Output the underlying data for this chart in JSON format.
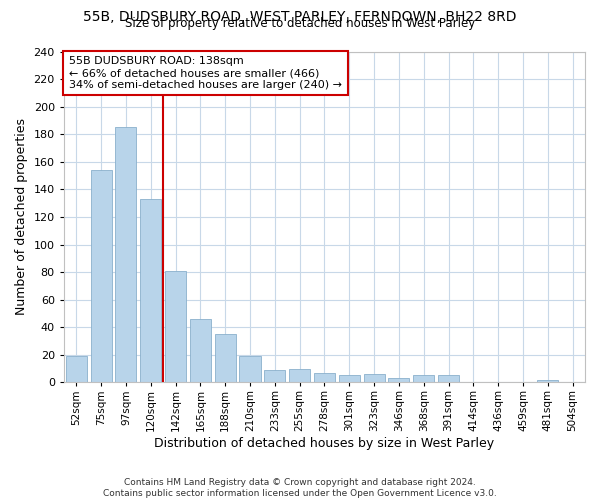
{
  "title1": "55B, DUDSBURY ROAD, WEST PARLEY, FERNDOWN, BH22 8RD",
  "title2": "Size of property relative to detached houses in West Parley",
  "xlabel": "Distribution of detached houses by size in West Parley",
  "ylabel": "Number of detached properties",
  "categories": [
    "52sqm",
    "75sqm",
    "97sqm",
    "120sqm",
    "142sqm",
    "165sqm",
    "188sqm",
    "210sqm",
    "233sqm",
    "255sqm",
    "278sqm",
    "301sqm",
    "323sqm",
    "346sqm",
    "368sqm",
    "391sqm",
    "414sqm",
    "436sqm",
    "459sqm",
    "481sqm",
    "504sqm"
  ],
  "values": [
    19,
    154,
    185,
    133,
    81,
    46,
    35,
    19,
    9,
    10,
    7,
    5,
    6,
    3,
    5,
    5,
    0,
    0,
    0,
    2,
    0
  ],
  "bar_color": "#b8d4ea",
  "bar_edge_color": "#8ab0cc",
  "vline_x_idx": 3.5,
  "vline_color": "#cc0000",
  "annotation_text": "55B DUDSBURY ROAD: 138sqm\n← 66% of detached houses are smaller (466)\n34% of semi-detached houses are larger (240) →",
  "annotation_box_color": "#ffffff",
  "annotation_box_edge": "#cc0000",
  "ylim": [
    0,
    240
  ],
  "yticks": [
    0,
    20,
    40,
    60,
    80,
    100,
    120,
    140,
    160,
    180,
    200,
    220,
    240
  ],
  "footnote": "Contains HM Land Registry data © Crown copyright and database right 2024.\nContains public sector information licensed under the Open Government Licence v3.0.",
  "bg_color": "#ffffff",
  "plot_bg_color": "#ffffff",
  "grid_color": "#c8d8e8"
}
